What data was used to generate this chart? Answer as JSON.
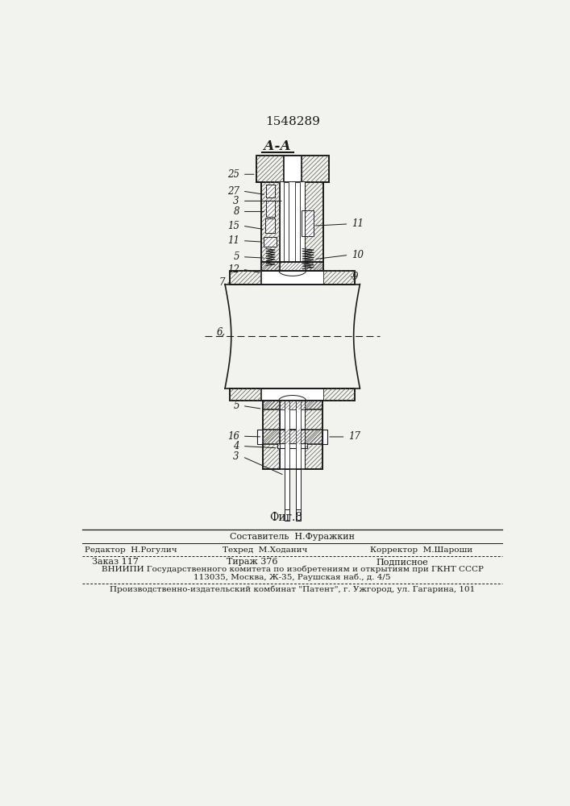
{
  "patent_number": "1548289",
  "section_label": "А-А",
  "figure_label": "Фиг.8",
  "bg_color": "#f2f2ee",
  "line_color": "#1a1a1a",
  "составитель": "Составитель  Н.Фуражкин",
  "редактор": "Редактор  Н.Рогулич",
  "техред": "Техред  М.Ходанич",
  "корректор": "Корректор  М.Шароши",
  "заказ": "Заказ 117",
  "тираж": "Тираж 376",
  "подписное": "Подписное",
  "вниипи": "ВНИИПИ Государственного комитета по изобретениям и открытиям при ГКНТ СССР",
  "адрес": "113035, Москва, Ж-35, Раушская наб., д. 4/5",
  "комбинат": "Производственно-издательский комбинат \"Патент\", г. Ужгород, ул. Гагарина, 101"
}
